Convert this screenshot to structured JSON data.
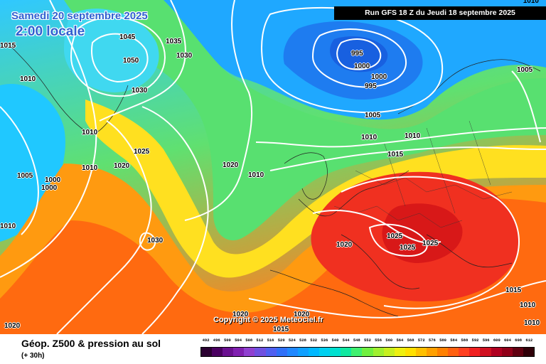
{
  "header": {
    "date": "Samedi 20 septembre 2025",
    "local_time": "2:00 locale",
    "run": "Run GFS 18 Z du Jeudi 18 septembre 2025",
    "corner_label": "1010"
  },
  "map": {
    "copyright": "Copyright © 2025 Meteociel.fr",
    "isobar_labels": [
      "1045",
      "1050",
      "1035",
      "1030",
      "1030",
      "1015",
      "1010",
      "1010",
      "1025",
      "1020",
      "1010",
      "1005",
      "1000",
      "1000",
      "1010",
      "1030",
      "1020",
      "1010",
      "995",
      "1000",
      "1000",
      "995",
      "1005",
      "1010",
      "1010",
      "1015",
      "1005",
      "1020",
      "1025",
      "1025",
      "1025",
      "1015",
      "1010",
      "1010",
      "1020",
      "1020",
      "1015",
      "1020"
    ]
  },
  "footer": {
    "title": "Géop. Z500 & pression au sol",
    "subtitle": "(+ 30h)"
  },
  "legend": {
    "ticks": [
      "492",
      "496",
      "500",
      "504",
      "508",
      "512",
      "516",
      "520",
      "524",
      "528",
      "532",
      "536",
      "540",
      "544",
      "548",
      "552",
      "556",
      "560",
      "564",
      "568",
      "572",
      "576",
      "580",
      "584",
      "588",
      "592",
      "596",
      "600",
      "604",
      "608",
      "612"
    ],
    "colors": [
      "#2a0030",
      "#4a0060",
      "#6a1090",
      "#8020b0",
      "#9040d0",
      "#7050e0",
      "#5060f0",
      "#3070f8",
      "#2088ff",
      "#10a0ff",
      "#00b8ff",
      "#00d0f0",
      "#00e0d0",
      "#10e8a0",
      "#40f070",
      "#70f040",
      "#a0f030",
      "#c8f020",
      "#eef010",
      "#ffe000",
      "#ffc000",
      "#ffa000",
      "#ff8000",
      "#ff6010",
      "#ff4020",
      "#f02020",
      "#d01020",
      "#b00020",
      "#900018",
      "#600010",
      "#300008"
    ]
  }
}
